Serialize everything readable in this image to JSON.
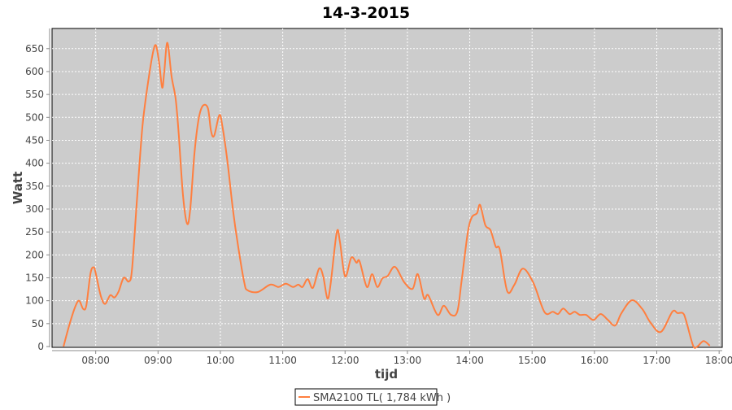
{
  "chart_data": {
    "type": "line",
    "title": "14-3-2015",
    "xlabel": "tijd",
    "ylabel": "Watt",
    "ylim": [
      0,
      694
    ],
    "xlim": [
      "07:18",
      "18:03"
    ],
    "yticks": [
      0,
      50,
      100,
      150,
      200,
      250,
      300,
      350,
      400,
      450,
      500,
      550,
      600,
      650
    ],
    "xticks": [
      "08:00",
      "09:00",
      "10:00",
      "11:00",
      "12:00",
      "13:00",
      "14:00",
      "15:00",
      "16:00",
      "17:00",
      "18:00"
    ],
    "grid": true,
    "legend_position": "bottom",
    "colors": {
      "plot_background": "#cccccc",
      "series": "#ff7f3f",
      "grid": "#ffffff"
    },
    "series": [
      {
        "name": "SMA2100 TL( 1,784 kWh )",
        "x": [
          "07:29",
          "07:35",
          "07:40",
          "07:44",
          "07:48",
          "07:51",
          "07:55",
          "07:58",
          "08:00",
          "08:05",
          "08:09",
          "08:14",
          "08:18",
          "08:22",
          "08:27",
          "08:32",
          "08:35",
          "08:40",
          "08:45",
          "08:50",
          "08:55",
          "08:58",
          "09:01",
          "09:04",
          "09:06",
          "09:09",
          "09:13",
          "09:17",
          "09:20",
          "09:24",
          "09:28",
          "09:31",
          "09:35",
          "09:39",
          "09:43",
          "09:48",
          "09:51",
          "09:54",
          "09:59",
          "10:02",
          "10:07",
          "10:12",
          "10:17",
          "10:23",
          "10:26",
          "10:36",
          "10:48",
          "10:56",
          "11:03",
          "11:10",
          "11:15",
          "11:19",
          "11:24",
          "11:29",
          "11:35",
          "11:39",
          "11:43",
          "11:46",
          "11:52",
          "11:55",
          "12:00",
          "12:06",
          "12:11",
          "12:14",
          "12:21",
          "12:26",
          "12:31",
          "12:36",
          "12:41",
          "12:48",
          "12:57",
          "13:05",
          "13:10",
          "13:16",
          "13:20",
          "13:29",
          "13:35",
          "13:42",
          "13:48",
          "13:52",
          "13:58",
          "14:02",
          "14:07",
          "14:10",
          "14:15",
          "14:20",
          "14:25",
          "14:29",
          "14:36",
          "14:43",
          "14:51",
          "15:01",
          "15:12",
          "15:20",
          "15:25",
          "15:30",
          "15:36",
          "15:41",
          "15:46",
          "15:52",
          "15:59",
          "16:06",
          "16:13",
          "16:20",
          "16:26",
          "16:36",
          "16:46",
          "16:54",
          "17:04",
          "17:15",
          "17:20",
          "17:25",
          "17:28",
          "17:35",
          "17:39",
          "17:45",
          "17:51"
        ],
        "values": [
          0,
          50,
          85,
          100,
          82,
          90,
          160,
          173,
          160,
          110,
          93,
          112,
          107,
          120,
          150,
          142,
          170,
          330,
          480,
          570,
          640,
          657,
          620,
          565,
          600,
          663,
          590,
          540,
          460,
          330,
          268,
          300,
          420,
          495,
          525,
          520,
          470,
          460,
          505,
          480,
          400,
          300,
          220,
          140,
          123,
          119,
          135,
          130,
          137,
          130,
          135,
          130,
          147,
          128,
          170,
          153,
          105,
          135,
          249,
          229,
          153,
          194,
          183,
          186,
          130,
          158,
          130,
          149,
          154,
          174,
          140,
          126,
          158,
          105,
          112,
          69,
          89,
          69,
          76,
          140,
          247,
          282,
          291,
          309,
          265,
          254,
          218,
          211,
          121,
          135,
          170,
          140,
          75,
          76,
          71,
          83,
          71,
          76,
          69,
          69,
          58,
          71,
          58,
          46,
          73,
          101,
          82,
          52,
          32,
          76,
          73,
          73,
          58,
          2,
          0,
          12,
          2
        ]
      }
    ]
  }
}
